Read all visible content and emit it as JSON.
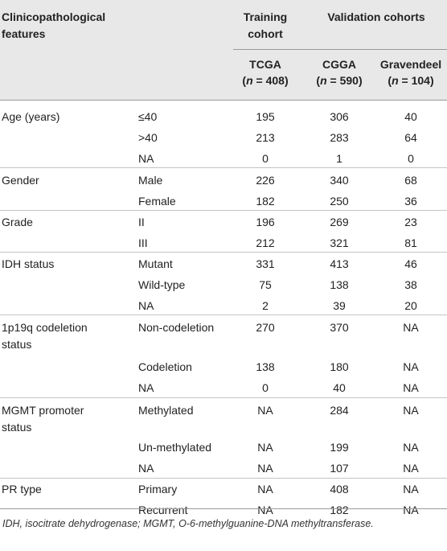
{
  "header": {
    "feature_line1": "Clinicopathological",
    "feature_line2": "features",
    "training_line1": "Training",
    "training_line2": "cohort",
    "validation": "Validation cohorts",
    "tcga": "TCGA",
    "tcga_n": "(n = 408)",
    "cgga": "CGGA",
    "cgga_n": "(n = 590)",
    "grav": "Gravendeel",
    "grav_n": "(n = 104)"
  },
  "rows": [
    {
      "feature": "Age (years)",
      "feature2": "",
      "cat": "≤40",
      "tcga": "195",
      "cgga": "306",
      "grav": "40"
    },
    {
      "feature": "",
      "feature2": "",
      "cat": ">40",
      "tcga": "213",
      "cgga": "283",
      "grav": "64"
    },
    {
      "feature": "",
      "feature2": "",
      "cat": "NA",
      "tcga": "0",
      "cgga": "1",
      "grav": "0"
    },
    {
      "feature": "Gender",
      "feature2": "",
      "cat": "Male",
      "tcga": "226",
      "cgga": "340",
      "grav": "68"
    },
    {
      "feature": "",
      "feature2": "",
      "cat": "Female",
      "tcga": "182",
      "cgga": "250",
      "grav": "36"
    },
    {
      "feature": "Grade",
      "feature2": "",
      "cat": "II",
      "tcga": "196",
      "cgga": "269",
      "grav": "23"
    },
    {
      "feature": "",
      "feature2": "",
      "cat": "III",
      "tcga": "212",
      "cgga": "321",
      "grav": "81"
    },
    {
      "feature": "IDH status",
      "feature2": "",
      "cat": "Mutant",
      "tcga": "331",
      "cgga": "413",
      "grav": "46"
    },
    {
      "feature": "",
      "feature2": "",
      "cat": "Wild-type",
      "tcga": "75",
      "cgga": "138",
      "grav": "38"
    },
    {
      "feature": "",
      "feature2": "",
      "cat": "NA",
      "tcga": "2",
      "cgga": "39",
      "grav": "20"
    },
    {
      "feature": "1p19q codeletion",
      "feature2": "status",
      "cat": "Non-codeletion",
      "tcga": "270",
      "cgga": "370",
      "grav": "NA"
    },
    {
      "feature": "",
      "feature2": "",
      "cat": "Codeletion",
      "tcga": "138",
      "cgga": "180",
      "grav": "NA"
    },
    {
      "feature": "",
      "feature2": "",
      "cat": "NA",
      "tcga": "0",
      "cgga": "40",
      "grav": "NA"
    },
    {
      "feature": "MGMT promoter",
      "feature2": "status",
      "cat": "Methylated",
      "tcga": "NA",
      "cgga": "284",
      "grav": "NA"
    },
    {
      "feature": "",
      "feature2": "",
      "cat": "Un-methylated",
      "tcga": "NA",
      "cgga": "199",
      "grav": "NA"
    },
    {
      "feature": "",
      "feature2": "",
      "cat": "NA",
      "tcga": "NA",
      "cgga": "107",
      "grav": "NA"
    },
    {
      "feature": "PR type",
      "feature2": "",
      "cat": "Primary",
      "tcga": "NA",
      "cgga": "408",
      "grav": "NA"
    },
    {
      "feature": "",
      "feature2": "",
      "cat": "Recurrent",
      "tcga": "NA",
      "cgga": "182",
      "grav": "NA"
    }
  ],
  "footnote": "IDH, isocitrate dehydrogenase; MGMT, O-6-methylguanine-DNA methyltransferase."
}
